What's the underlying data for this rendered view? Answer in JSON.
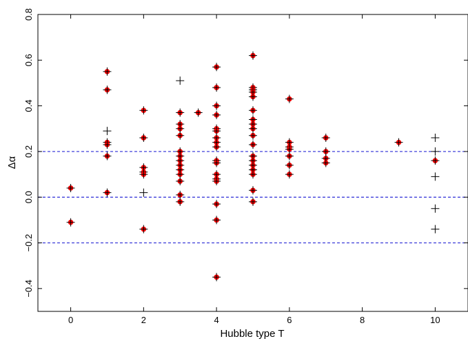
{
  "chart_data": {
    "type": "scatter",
    "xlabel": "Hubble type T",
    "ylabel": "Δα",
    "xlim": [
      -0.9,
      10.9
    ],
    "ylim": [
      -0.5,
      0.8
    ],
    "xticks": [
      0,
      2,
      4,
      6,
      8,
      10
    ],
    "xtick_labels": [
      "0",
      "2",
      "4",
      "6",
      "8",
      "10"
    ],
    "yticks": [
      -0.4,
      -0.2,
      0.0,
      0.2,
      0.4,
      0.6,
      0.8
    ],
    "ytick_labels": [
      "−0.4",
      "−0.2",
      "0.0",
      "0.2",
      "0.4",
      "0.6",
      "0.8"
    ],
    "reference_lines": [
      -0.2,
      0.0,
      0.2
    ],
    "reference_line_color": "#2b2bd6",
    "marker_color": "#ff0000",
    "cross_color": "#000000",
    "grid": false,
    "legend": "none",
    "series": [
      {
        "marker": "red-dot-with-cross",
        "points": [
          [
            0,
            0.04
          ],
          [
            0,
            -0.11
          ],
          [
            1,
            0.55
          ],
          [
            1,
            0.47
          ],
          [
            1,
            0.24
          ],
          [
            1,
            0.23
          ],
          [
            1,
            0.18
          ],
          [
            1,
            0.02
          ],
          [
            2,
            0.38
          ],
          [
            2,
            0.26
          ],
          [
            2,
            0.13
          ],
          [
            2,
            0.11
          ],
          [
            2,
            0.1
          ],
          [
            2,
            -0.14
          ],
          [
            3,
            0.37
          ],
          [
            3,
            0.32
          ],
          [
            3,
            0.3
          ],
          [
            3,
            0.27
          ],
          [
            3,
            0.2
          ],
          [
            3,
            0.18
          ],
          [
            3,
            0.16
          ],
          [
            3,
            0.14
          ],
          [
            3,
            0.12
          ],
          [
            3,
            0.1
          ],
          [
            3,
            0.07
          ],
          [
            3,
            0.01
          ],
          [
            3,
            -0.02
          ],
          [
            3.5,
            0.37
          ],
          [
            4,
            0.57
          ],
          [
            4,
            0.48
          ],
          [
            4,
            0.4
          ],
          [
            4,
            0.36
          ],
          [
            4,
            0.3
          ],
          [
            4,
            0.29
          ],
          [
            4,
            0.26
          ],
          [
            4,
            0.24
          ],
          [
            4,
            0.22
          ],
          [
            4,
            0.16
          ],
          [
            4,
            0.15
          ],
          [
            4,
            0.1
          ],
          [
            4,
            0.08
          ],
          [
            4,
            0.07
          ],
          [
            4,
            -0.03
          ],
          [
            4,
            -0.1
          ],
          [
            4,
            -0.35
          ],
          [
            5,
            0.62
          ],
          [
            5,
            0.48
          ],
          [
            5,
            0.47
          ],
          [
            5,
            0.46
          ],
          [
            5,
            0.44
          ],
          [
            5,
            0.38
          ],
          [
            5,
            0.34
          ],
          [
            5,
            0.32
          ],
          [
            5,
            0.3
          ],
          [
            5,
            0.27
          ],
          [
            5,
            0.23
          ],
          [
            5,
            0.18
          ],
          [
            5,
            0.16
          ],
          [
            5,
            0.14
          ],
          [
            5,
            0.12
          ],
          [
            5,
            0.1
          ],
          [
            5,
            0.03
          ],
          [
            5,
            -0.02
          ],
          [
            6,
            0.43
          ],
          [
            6,
            0.24
          ],
          [
            6,
            0.22
          ],
          [
            6,
            0.21
          ],
          [
            6,
            0.18
          ],
          [
            6,
            0.14
          ],
          [
            6,
            0.1
          ],
          [
            7,
            0.26
          ],
          [
            7,
            0.2
          ],
          [
            7,
            0.17
          ],
          [
            7,
            0.15
          ],
          [
            9,
            0.24
          ],
          [
            10,
            0.16
          ]
        ]
      },
      {
        "marker": "black-cross",
        "points": [
          [
            1,
            0.29
          ],
          [
            2,
            0.02
          ],
          [
            3,
            0.51
          ],
          [
            10,
            0.26
          ],
          [
            10,
            0.2
          ],
          [
            10,
            0.09
          ],
          [
            10,
            -0.05
          ],
          [
            10,
            -0.14
          ]
        ]
      }
    ]
  }
}
